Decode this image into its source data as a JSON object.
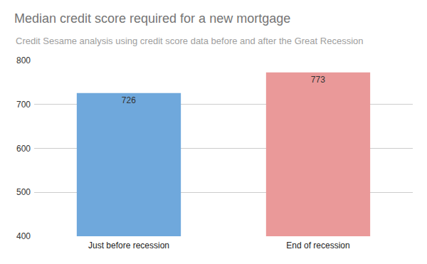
{
  "chart_data": {
    "type": "bar",
    "title": "Median credit score required for a new mortgage",
    "subtitle": "Credit Sesame analysis using credit score data before and after the Great Recession",
    "categories": [
      "Just before recession",
      "End of recession"
    ],
    "values": [
      726,
      773
    ],
    "colors": [
      "#6fa8dc",
      "#ea9999"
    ],
    "ylim": [
      400,
      800
    ],
    "yticks": [
      400,
      500,
      600,
      700,
      800
    ],
    "grid": true,
    "data_labels": true
  }
}
